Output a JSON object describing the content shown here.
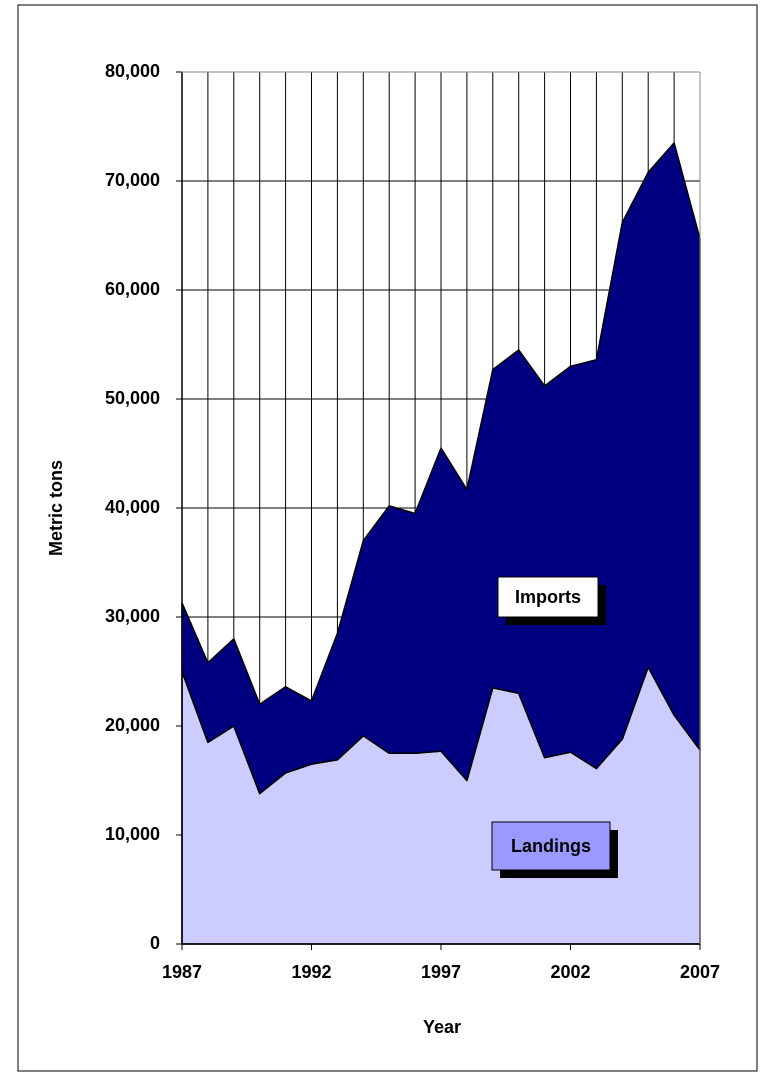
{
  "chart_data": {
    "type": "stacked-area",
    "x_label": "Year",
    "y_label": "Metric tons",
    "x": [
      1987,
      1988,
      1989,
      1990,
      1991,
      1992,
      1993,
      1994,
      1995,
      1996,
      1997,
      1998,
      1999,
      2000,
      2001,
      2002,
      2003,
      2004,
      2005,
      2006,
      2007
    ],
    "series": [
      {
        "name": "Landings",
        "color": "#ccccff",
        "legend_color": "#9999ff",
        "values": [
          25000,
          18500,
          20000,
          13800,
          15700,
          16500,
          16900,
          19100,
          17500,
          17500,
          17700,
          15000,
          23500,
          23000,
          17100,
          17600,
          16100,
          18800,
          25400,
          21000,
          17800
        ]
      },
      {
        "name": "Imports",
        "color": "#000080",
        "legend_color": "#ffffff",
        "values": [
          6300,
          7300,
          8000,
          8200,
          7900,
          5800,
          11600,
          17900,
          22700,
          22000,
          27800,
          26700,
          29200,
          31500,
          34100,
          35400,
          37500,
          47400,
          45400,
          52500,
          46900
        ]
      }
    ],
    "xlim": [
      1987,
      2007
    ],
    "xticks": [
      1987,
      1992,
      1997,
      2002,
      2007
    ],
    "ylim": [
      0,
      80000
    ],
    "yticks": [
      0,
      {
        "value": 10000,
        "label": "10,000"
      },
      {
        "value": 20000,
        "label": "20,000"
      },
      {
        "value": 30000,
        "label": "30,000"
      },
      {
        "value": 40000,
        "label": "40,000"
      },
      {
        "value": 50000,
        "label": "50,000"
      },
      {
        "value": 60000,
        "label": "60,000"
      },
      {
        "value": 70000,
        "label": "70,000"
      },
      {
        "value": 80000,
        "label": "80,000"
      }
    ],
    "grid": "vertical"
  }
}
